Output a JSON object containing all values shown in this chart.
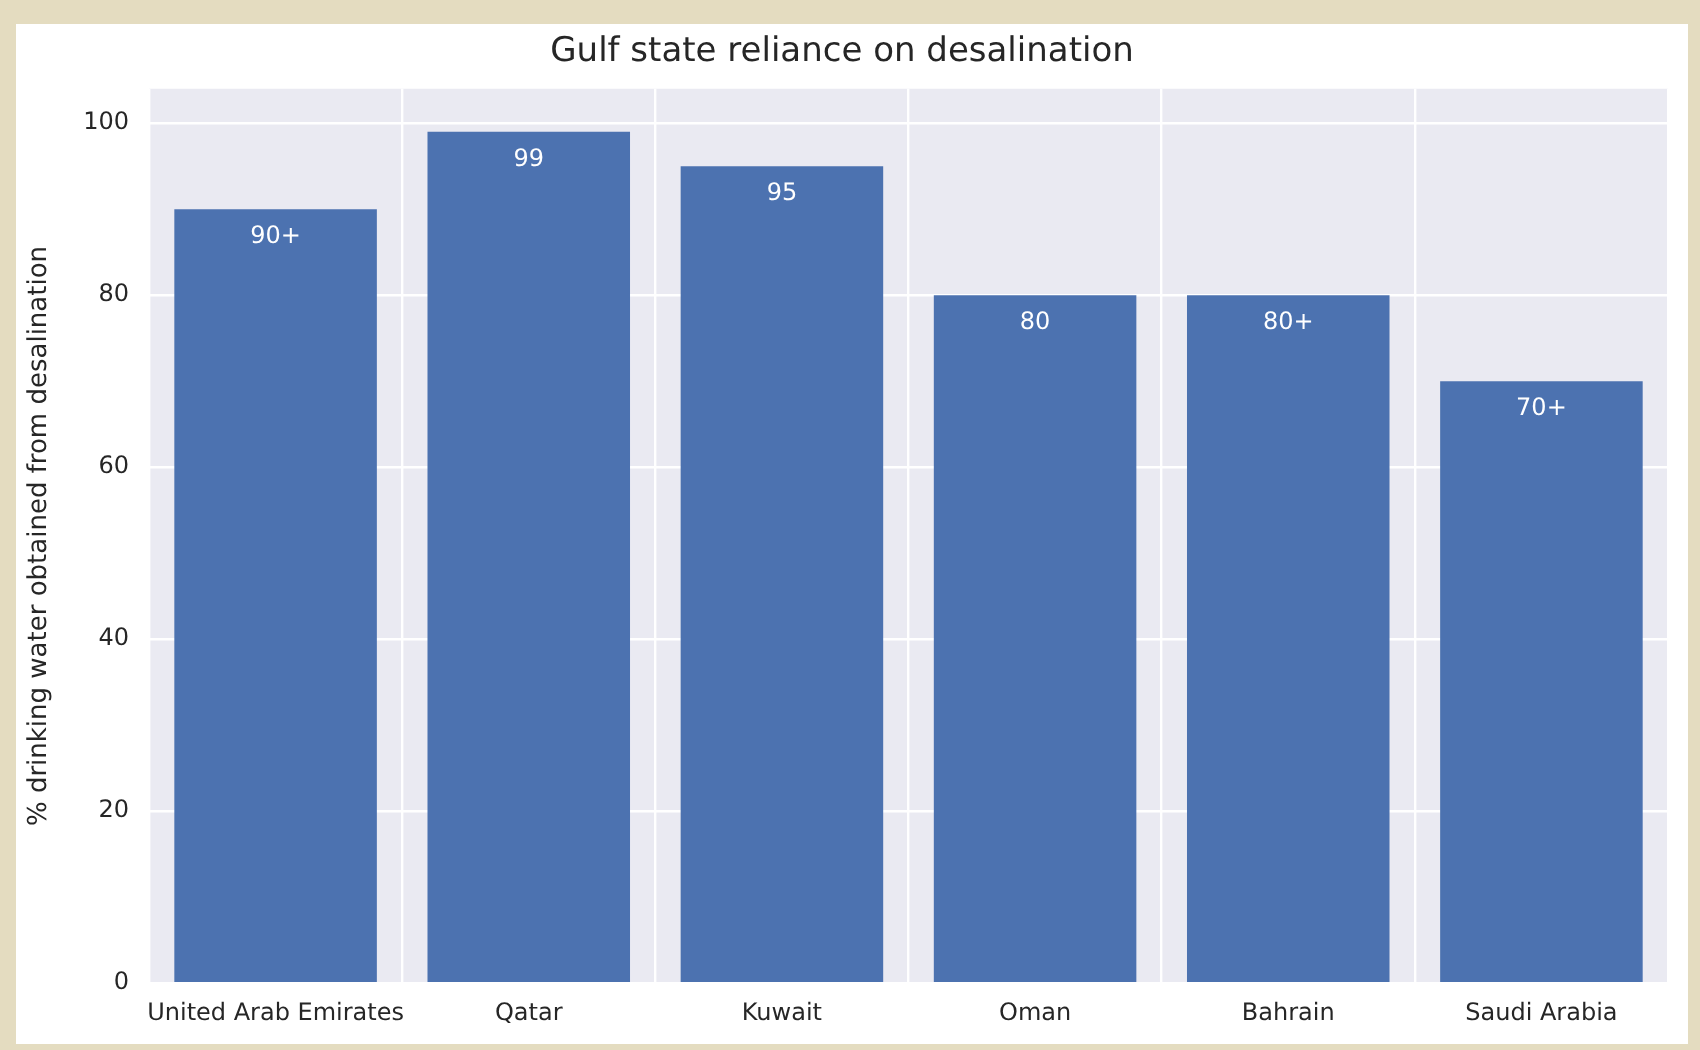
{
  "chart_data": {
    "type": "bar",
    "title": "Gulf state reliance on desalination",
    "ylabel": "% drinking water obtained from desalination",
    "categories": [
      "United Arab Emirates",
      "Qatar",
      "Kuwait",
      "Oman",
      "Bahrain",
      "Saudi Arabia"
    ],
    "values": [
      90,
      99,
      95,
      80,
      80,
      70
    ],
    "value_labels": [
      "90+",
      "99",
      "95",
      "80",
      "80+",
      "70+"
    ],
    "color": "#4c72b0",
    "ylim": [
      0,
      104
    ],
    "yticks": [
      0,
      20,
      40,
      60,
      80,
      100
    ],
    "grid": true,
    "legend": false
  }
}
